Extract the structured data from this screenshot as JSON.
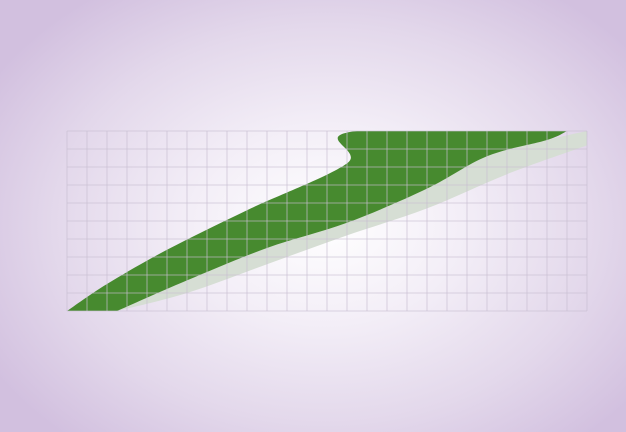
{
  "colors": {
    "background_center": "#ffffff",
    "background_edge": "#d2c0df",
    "grid": "#c9bfd2",
    "band_primary": "#478a2f",
    "band_secondary": "#d6ded4"
  },
  "chart_data": {
    "type": "area",
    "grid": true,
    "columns": 26,
    "rows": 10,
    "xlim": [
      0,
      26
    ],
    "ylim": [
      0,
      10
    ],
    "series": [
      {
        "role": "front-band",
        "color": "#478a2f",
        "upper": [
          [
            0,
            0
          ],
          [
            2,
            1.5
          ],
          [
            5,
            3.4
          ],
          [
            9,
            5.6
          ],
          [
            14,
            8.2
          ],
          [
            14.5,
            10
          ],
          [
            28,
            10
          ]
        ],
        "lower": [
          [
            2.5,
            0
          ],
          [
            6,
            1.7
          ],
          [
            10,
            3.5
          ],
          [
            14,
            4.9
          ],
          [
            18,
            6.8
          ],
          [
            21,
            8.6
          ],
          [
            24,
            9.5
          ],
          [
            25,
            10
          ]
        ]
      },
      {
        "role": "back-band",
        "color": "#d6ded4",
        "upper": [
          [
            2.5,
            0
          ],
          [
            6,
            1.7
          ],
          [
            10,
            3.5
          ],
          [
            14,
            4.9
          ],
          [
            18,
            6.8
          ],
          [
            21,
            8.6
          ],
          [
            24,
            9.5
          ],
          [
            26,
            10
          ]
        ],
        "lower": [
          [
            2.5,
            0
          ],
          [
            6,
            1.0
          ],
          [
            10,
            2.6
          ],
          [
            14,
            4.2
          ],
          [
            18,
            5.7
          ],
          [
            22,
            7.6
          ],
          [
            26,
            9.2
          ]
        ]
      }
    ]
  }
}
